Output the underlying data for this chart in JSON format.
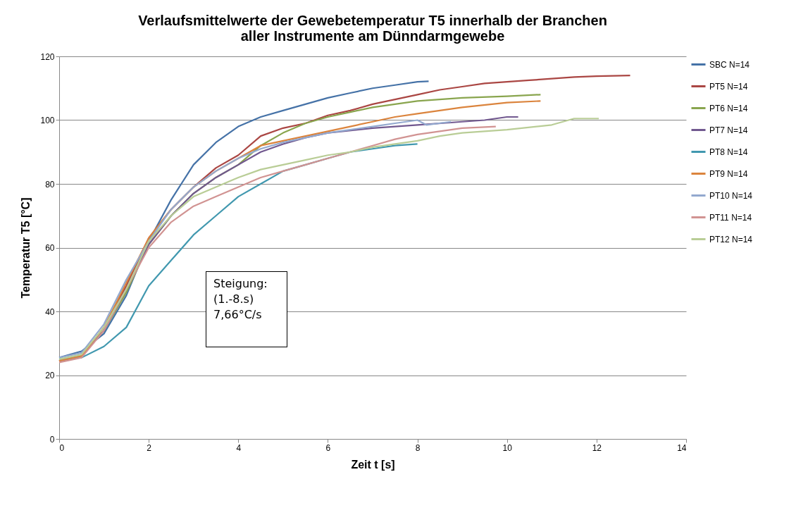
{
  "chart_data": {
    "type": "line",
    "title": "Verlaufsmittelwerte der Gewebetemperatur T5 innerhalb der Branchen\naller Instrumente am Dünndarmgewebe",
    "xlabel": "Zeit t [s]",
    "ylabel": "Temperatur T5  [°C]",
    "xlim": [
      0,
      14
    ],
    "xticks": [
      0,
      2,
      4,
      6,
      8,
      10,
      12,
      14
    ],
    "ylim": [
      0,
      120
    ],
    "yticks": [
      0,
      20,
      40,
      60,
      80,
      100,
      120
    ],
    "grid": "y",
    "legend": "right",
    "line_style": "solid",
    "marker": "none",
    "annotations": [
      "Steigung:\n(1.-8.s)\n7,66°C/s"
    ],
    "series": [
      {
        "name": "SBC   N=14",
        "color": "#4572a7",
        "x": [
          0,
          0.5,
          1,
          1.5,
          2,
          2.5,
          3,
          3.5,
          4,
          4.5,
          5,
          5.5,
          6,
          6.5,
          7,
          7.5,
          8,
          8.25
        ],
        "values": [
          25.5,
          27.5,
          33,
          45,
          62,
          75,
          86,
          93,
          98,
          101,
          103,
          105,
          107,
          108.5,
          110,
          111,
          112,
          112.2
        ]
      },
      {
        "name": "PT5  N=14",
        "color": "#aa4643",
        "x": [
          0,
          0.5,
          1,
          1.5,
          2,
          2.5,
          3,
          3.5,
          4,
          4.5,
          5,
          5.5,
          6,
          6.5,
          7,
          7.5,
          8,
          8.5,
          9,
          9.5,
          10,
          10.5,
          11,
          11.5,
          12,
          12.75
        ],
        "values": [
          24.5,
          26,
          35,
          48,
          63,
          72,
          79,
          85,
          89,
          95,
          97.5,
          99,
          101.5,
          103,
          105,
          106.5,
          108,
          109.5,
          110.5,
          111.5,
          112,
          112.5,
          113,
          113.5,
          113.8,
          114
        ]
      },
      {
        "name": "PT6  N=14",
        "color": "#89a54e",
        "x": [
          0,
          0.5,
          1,
          1.5,
          2,
          2.5,
          3,
          3.5,
          4,
          4.5,
          5,
          5.5,
          6,
          6.5,
          7,
          7.5,
          8,
          9,
          10,
          10.75
        ],
        "values": [
          24.5,
          26,
          34,
          46,
          61,
          70,
          77,
          82,
          86,
          92,
          96,
          99,
          101,
          102.5,
          104,
          105,
          106,
          107,
          107.5,
          108
        ]
      },
      {
        "name": "PT7  N=14",
        "color": "#71588f",
        "x": [
          0,
          0.5,
          1,
          1.5,
          2,
          2.5,
          3,
          3.5,
          4,
          4.5,
          5,
          5.5,
          6,
          7,
          8,
          9,
          9.5,
          10,
          10.25
        ],
        "values": [
          24.5,
          26,
          34,
          47,
          61,
          70,
          77,
          82,
          86,
          90,
          92.5,
          94.5,
          96,
          97.5,
          98.5,
          99.5,
          100,
          101,
          101
        ]
      },
      {
        "name": "PT8  N=14",
        "color": "#4198af",
        "x": [
          0,
          0.5,
          1,
          1.5,
          2,
          2.5,
          3,
          3.5,
          4,
          4.5,
          5,
          5.5,
          6,
          6.5,
          7,
          7.5,
          8
        ],
        "values": [
          25,
          25.5,
          29,
          35,
          48,
          56,
          64,
          70,
          76,
          80,
          84,
          86,
          88,
          90,
          91,
          92,
          92.5
        ]
      },
      {
        "name": "PT9  N=14",
        "color": "#db843d",
        "x": [
          0,
          0.5,
          1,
          1.5,
          2,
          2.5,
          3,
          3.5,
          4,
          4.5,
          5,
          5.5,
          6,
          6.5,
          7,
          7.5,
          8,
          9,
          10,
          10.75
        ],
        "values": [
          24.5,
          26,
          35,
          49,
          63,
          72,
          79,
          84,
          88,
          92,
          93.5,
          95,
          96.5,
          98,
          99.5,
          101,
          102,
          104,
          105.5,
          106
        ]
      },
      {
        "name": "PT10 N=14",
        "color": "#93a9cf",
        "x": [
          0,
          0.5,
          1,
          1.5,
          2,
          2.5,
          3,
          3.5,
          4,
          4.5,
          5,
          5.5,
          6,
          6.5,
          7,
          7.5,
          8,
          8.2,
          8.75
        ],
        "values": [
          25.5,
          27,
          36,
          50,
          62,
          72,
          79,
          84,
          88,
          91,
          93,
          94.5,
          96,
          97,
          98,
          99,
          100,
          98.5,
          99.5
        ]
      },
      {
        "name": "PT11 N=14",
        "color": "#d19392",
        "x": [
          0,
          0.5,
          1,
          1.5,
          2,
          2.5,
          3,
          3.5,
          4,
          4.5,
          5,
          5.5,
          6,
          6.5,
          7,
          7.5,
          8,
          8.5,
          9,
          9.75
        ],
        "values": [
          24,
          25.5,
          34,
          47,
          60,
          68,
          73,
          76,
          79,
          82,
          84,
          86,
          88,
          90,
          92,
          94,
          95.5,
          96.5,
          97.5,
          98
        ]
      },
      {
        "name": "PT12 N=14",
        "color": "#b9cd96",
        "x": [
          0,
          0.5,
          1,
          1.5,
          2,
          2.5,
          3,
          3.5,
          4,
          4.5,
          5,
          5.5,
          6,
          6.5,
          7,
          7.5,
          8,
          8.5,
          9,
          10,
          11,
          11.5,
          12.05
        ],
        "values": [
          25,
          26.5,
          35,
          47,
          62,
          70,
          76,
          79,
          82,
          84.5,
          86,
          87.5,
          89,
          90,
          91.5,
          92.5,
          93.5,
          95,
          96,
          97,
          98.5,
          100.5,
          100.5
        ]
      }
    ]
  }
}
